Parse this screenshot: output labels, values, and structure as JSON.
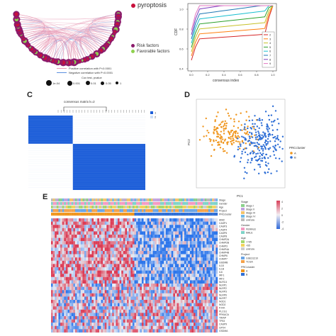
{
  "panelA": {
    "legend_pyroptosis": "pyroptosis",
    "legend_risk": "Risk factors",
    "legend_favorable": "Favorable factors",
    "pos_corr": "Positive correlation with P<0.0001",
    "neg_corr": "Negative correlation with P<0.0001",
    "cox_title": "Cox test, pvalue",
    "cox_values": [
      "1e-04",
      "0.001",
      "0.01",
      "0.05",
      "1"
    ],
    "colors": {
      "pyroptosis": "#c8103c",
      "risk": "#8b1a6b",
      "favorable": "#8fd14f",
      "pos": "#e79ab6",
      "neg": "#5a8fe0"
    }
  },
  "panelB": {
    "ylabel": "CDF",
    "xlabel": "consensus index",
    "yticks": [
      "1.0",
      "0.8",
      "0.6",
      "0.4"
    ],
    "xticks": [
      "0.0",
      "0.2",
      "0.4",
      "0.6",
      "0.8",
      "1.0"
    ],
    "legend": [
      "2",
      "3",
      "4",
      "5",
      "6",
      "7",
      "8",
      "9"
    ],
    "colors": [
      "#d62728",
      "#ff7f0e",
      "#c7c12a",
      "#2ca02c",
      "#17becf",
      "#1f77b4",
      "#7b3fbf",
      "#e377c2"
    ]
  },
  "panelC": {
    "letter": "C",
    "title": "consensus matrix k=2",
    "legend": [
      "1",
      "2"
    ],
    "colors": {
      "block": "#1e5fd9",
      "light": "#cfe0f7",
      "white": "#ffffff"
    }
  },
  "panelD": {
    "letter": "D",
    "xlabel": "PC1",
    "ylabel": "PC2",
    "legend_title": "PRCcluster",
    "legend": [
      "A",
      "B"
    ],
    "colors": {
      "A": "#f0961e",
      "B": "#2f6fd6"
    }
  },
  "panelE": {
    "letter": "E",
    "annotation_rows": [
      "Stage",
      "Gender",
      "Age",
      "Project",
      "PRCcluster"
    ],
    "genes": [
      "AIM2",
      "CASP1",
      "CASP3",
      "CASP4",
      "CASP5",
      "CASP8",
      "CHMP2A",
      "CHMP2B",
      "CHMP3",
      "CHMP4A",
      "CHMP4B",
      "CHMP6",
      "CHMP7",
      "GSDMB",
      "IL18",
      "IL1B",
      "IL6",
      "IRF1",
      "IRF2",
      "NLRC4",
      "NLRP1",
      "NLRP2",
      "NLRP3",
      "NLRP6",
      "NLRP7",
      "NOD1",
      "NOD2",
      "PJVK",
      "PLCG1",
      "PRKACA",
      "TIRAP",
      "TP53",
      "CASP9",
      "GPX4",
      "GSDMA"
    ],
    "legend_groups": [
      {
        "title": "Stage",
        "items": [
          "Stage I",
          "Stage II",
          "Stage III",
          "Stage IV",
          "unknow"
        ]
      },
      {
        "title": "Gender",
        "items": [
          "FEMALE",
          "MALE"
        ]
      },
      {
        "title": "Age",
        "items": [
          ">=65",
          "<65",
          "unknow"
        ]
      },
      {
        "title": "Project",
        "items": [
          "GSE31210",
          "TCGA"
        ]
      },
      {
        "title": "PRCcluster",
        "items": [
          "A",
          "B"
        ]
      }
    ],
    "scale_ticks": [
      "4",
      "2",
      "0",
      "-2",
      "-4"
    ]
  }
}
